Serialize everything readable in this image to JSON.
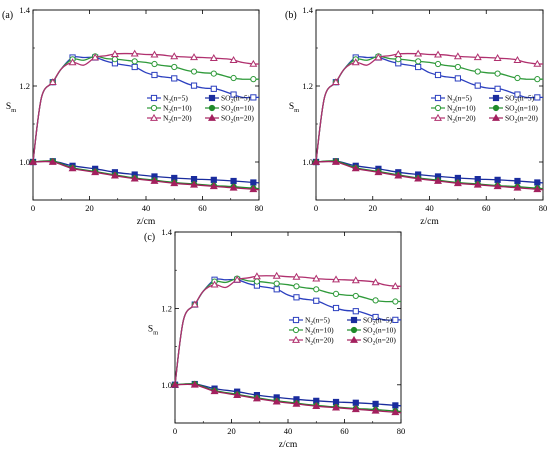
{
  "chart_data": [
    {
      "type": "line",
      "panel_label": "(a)",
      "xlabel": "z/cm",
      "ylabel": "S",
      "ylabel_sub": "m",
      "xlim": [
        0,
        80
      ],
      "ylim": [
        0.9,
        1.4
      ],
      "xticks": [
        "0",
        "20",
        "40",
        "60",
        "80"
      ],
      "yticks": [
        "1.0",
        "1.2",
        "1.4"
      ],
      "series": [
        {
          "name": "N2(n=5)",
          "color": "#2b3fbf",
          "marker": "open-square",
          "x": [
            0,
            3,
            7,
            10,
            14,
            18,
            22,
            26,
            30,
            36,
            40,
            45,
            50,
            55,
            60,
            65,
            70,
            74,
            78,
            80
          ],
          "y": [
            1.0,
            1.17,
            1.21,
            1.245,
            1.275,
            1.275,
            1.275,
            1.265,
            1.258,
            1.25,
            1.235,
            1.225,
            1.22,
            1.205,
            1.195,
            1.192,
            1.18,
            1.17,
            1.17,
            1.17
          ],
          "markers_x": [
            0,
            7,
            14,
            22,
            29,
            36,
            43,
            50,
            57,
            64,
            71,
            78
          ]
        },
        {
          "name": "N2(n=10)",
          "color": "#2f9a3a",
          "marker": "open-circle",
          "x": [
            0,
            3,
            7,
            10,
            14,
            18,
            22,
            26,
            30,
            36,
            40,
            45,
            50,
            55,
            60,
            65,
            70,
            74,
            78,
            80
          ],
          "y": [
            1.0,
            1.17,
            1.21,
            1.245,
            1.27,
            1.268,
            1.278,
            1.272,
            1.27,
            1.265,
            1.262,
            1.255,
            1.25,
            1.24,
            1.235,
            1.232,
            1.222,
            1.218,
            1.218,
            1.218
          ],
          "markers_x": [
            0,
            7,
            14,
            22,
            29,
            36,
            43,
            50,
            57,
            64,
            71,
            78
          ]
        },
        {
          "name": "N2(n=20)",
          "color": "#b0306e",
          "marker": "open-triangle",
          "x": [
            0,
            3,
            7,
            10,
            14,
            18,
            22,
            26,
            30,
            36,
            40,
            45,
            50,
            55,
            60,
            65,
            70,
            74,
            78,
            80
          ],
          "y": [
            1.0,
            1.17,
            1.21,
            1.245,
            1.262,
            1.255,
            1.275,
            1.28,
            1.285,
            1.285,
            1.283,
            1.282,
            1.278,
            1.276,
            1.275,
            1.273,
            1.27,
            1.262,
            1.258,
            1.258
          ],
          "markers_x": [
            0,
            7,
            14,
            22,
            29,
            36,
            43,
            50,
            57,
            64,
            71,
            78
          ]
        },
        {
          "name": "SO2(n=5)",
          "color": "#1a2c9e",
          "marker": "filled-square",
          "x": [
            0,
            7,
            14,
            22,
            29,
            36,
            43,
            50,
            57,
            64,
            71,
            80
          ],
          "y": [
            1.0,
            1.002,
            0.99,
            0.982,
            0.973,
            0.967,
            0.962,
            0.958,
            0.955,
            0.953,
            0.95,
            0.945
          ],
          "markers_x": [
            0,
            7,
            14,
            22,
            29,
            36,
            43,
            50,
            57,
            64,
            71,
            78
          ]
        },
        {
          "name": "SO2(n=10)",
          "color": "#1f8a2a",
          "marker": "filled-circle",
          "x": [
            0,
            7,
            14,
            22,
            29,
            36,
            43,
            50,
            57,
            64,
            71,
            80
          ],
          "y": [
            1.0,
            1.002,
            0.985,
            0.975,
            0.966,
            0.958,
            0.952,
            0.946,
            0.942,
            0.938,
            0.935,
            0.93
          ],
          "markers_x": [
            0,
            7,
            14,
            22,
            29,
            36,
            43,
            50,
            57,
            64,
            71,
            78
          ]
        },
        {
          "name": "SO2(n=20)",
          "color": "#a3205e",
          "marker": "filled-triangle",
          "x": [
            0,
            7,
            14,
            22,
            29,
            36,
            43,
            50,
            57,
            64,
            71,
            80
          ],
          "y": [
            1.0,
            1.0,
            0.983,
            0.973,
            0.964,
            0.956,
            0.95,
            0.944,
            0.94,
            0.936,
            0.932,
            0.927
          ],
          "markers_x": [
            0,
            7,
            14,
            22,
            29,
            36,
            43,
            50,
            57,
            64,
            71,
            78
          ]
        }
      ]
    },
    {
      "type": "line",
      "panel_label": "(b)",
      "xlabel": "z/cm",
      "ylabel": "S",
      "ylabel_sub": "m",
      "xlim": [
        0,
        80
      ],
      "ylim": [
        0.9,
        1.4
      ],
      "xticks": [
        "0",
        "20",
        "40",
        "60",
        "80"
      ],
      "yticks": [
        "1.0",
        "1.2",
        "1.4"
      ],
      "series": [
        {
          "name": "N2(n=5)",
          "color": "#2b3fbf",
          "marker": "open-square",
          "x": [
            0,
            3,
            7,
            10,
            14,
            18,
            22,
            26,
            30,
            36,
            40,
            45,
            50,
            55,
            60,
            65,
            70,
            74,
            78,
            80
          ],
          "y": [
            1.0,
            1.17,
            1.21,
            1.245,
            1.275,
            1.275,
            1.275,
            1.265,
            1.258,
            1.25,
            1.235,
            1.225,
            1.22,
            1.205,
            1.195,
            1.192,
            1.18,
            1.17,
            1.17,
            1.17
          ],
          "markers_x": [
            0,
            7,
            14,
            22,
            29,
            36,
            43,
            50,
            57,
            64,
            71,
            78
          ]
        },
        {
          "name": "N2(n=10)",
          "color": "#2f9a3a",
          "marker": "open-circle",
          "x": [
            0,
            3,
            7,
            10,
            14,
            18,
            22,
            26,
            30,
            36,
            40,
            45,
            50,
            55,
            60,
            65,
            70,
            74,
            78,
            80
          ],
          "y": [
            1.0,
            1.17,
            1.21,
            1.245,
            1.27,
            1.268,
            1.278,
            1.272,
            1.27,
            1.265,
            1.262,
            1.255,
            1.25,
            1.24,
            1.235,
            1.232,
            1.222,
            1.218,
            1.218,
            1.218
          ],
          "markers_x": [
            0,
            7,
            14,
            22,
            29,
            36,
            43,
            50,
            57,
            64,
            71,
            78
          ]
        },
        {
          "name": "N2(n=20)",
          "color": "#b0306e",
          "marker": "open-triangle",
          "x": [
            0,
            3,
            7,
            10,
            14,
            18,
            22,
            26,
            30,
            36,
            40,
            45,
            50,
            55,
            60,
            65,
            70,
            74,
            78,
            80
          ],
          "y": [
            1.0,
            1.17,
            1.21,
            1.245,
            1.262,
            1.255,
            1.275,
            1.28,
            1.285,
            1.285,
            1.283,
            1.282,
            1.278,
            1.276,
            1.275,
            1.273,
            1.27,
            1.262,
            1.258,
            1.258
          ],
          "markers_x": [
            0,
            7,
            14,
            22,
            29,
            36,
            43,
            50,
            57,
            64,
            71,
            78
          ]
        },
        {
          "name": "SO2(n=5)",
          "color": "#1a2c9e",
          "marker": "filled-square",
          "x": [
            0,
            7,
            14,
            22,
            29,
            36,
            43,
            50,
            57,
            64,
            71,
            80
          ],
          "y": [
            1.0,
            1.002,
            0.99,
            0.982,
            0.973,
            0.967,
            0.962,
            0.958,
            0.955,
            0.953,
            0.95,
            0.945
          ],
          "markers_x": [
            0,
            7,
            14,
            22,
            29,
            36,
            43,
            50,
            57,
            64,
            71,
            78
          ]
        },
        {
          "name": "SO2(n=10)",
          "color": "#1f8a2a",
          "marker": "filled-circle",
          "x": [
            0,
            7,
            14,
            22,
            29,
            36,
            43,
            50,
            57,
            64,
            71,
            80
          ],
          "y": [
            1.0,
            1.002,
            0.985,
            0.975,
            0.966,
            0.958,
            0.952,
            0.946,
            0.942,
            0.938,
            0.935,
            0.93
          ],
          "markers_x": [
            0,
            7,
            14,
            22,
            29,
            36,
            43,
            50,
            57,
            64,
            71,
            78
          ]
        },
        {
          "name": "SO2(n=20)",
          "color": "#a3205e",
          "marker": "filled-triangle",
          "x": [
            0,
            7,
            14,
            22,
            29,
            36,
            43,
            50,
            57,
            64,
            71,
            80
          ],
          "y": [
            1.0,
            1.0,
            0.983,
            0.973,
            0.964,
            0.956,
            0.95,
            0.944,
            0.94,
            0.936,
            0.932,
            0.927
          ],
          "markers_x": [
            0,
            7,
            14,
            22,
            29,
            36,
            43,
            50,
            57,
            64,
            71,
            78
          ]
        }
      ]
    },
    {
      "type": "line",
      "panel_label": "(c)",
      "xlabel": "z/cm",
      "ylabel": "S",
      "ylabel_sub": "m",
      "xlim": [
        0,
        80
      ],
      "ylim": [
        0.9,
        1.4
      ],
      "xticks": [
        "0",
        "20",
        "40",
        "60",
        "80"
      ],
      "yticks": [
        "1.0",
        "1.2",
        "1.4"
      ],
      "series": [
        {
          "name": "N2(n=5)",
          "color": "#2b3fbf",
          "marker": "open-square",
          "x": [
            0,
            3,
            7,
            10,
            14,
            18,
            22,
            26,
            30,
            36,
            40,
            45,
            50,
            55,
            60,
            65,
            70,
            74,
            78,
            80
          ],
          "y": [
            1.0,
            1.17,
            1.21,
            1.245,
            1.275,
            1.275,
            1.275,
            1.265,
            1.258,
            1.25,
            1.235,
            1.225,
            1.22,
            1.205,
            1.195,
            1.192,
            1.18,
            1.17,
            1.17,
            1.17
          ],
          "markers_x": [
            0,
            7,
            14,
            22,
            29,
            36,
            43,
            50,
            57,
            64,
            71,
            78
          ]
        },
        {
          "name": "N2(n=10)",
          "color": "#2f9a3a",
          "marker": "open-circle",
          "x": [
            0,
            3,
            7,
            10,
            14,
            18,
            22,
            26,
            30,
            36,
            40,
            45,
            50,
            55,
            60,
            65,
            70,
            74,
            78,
            80
          ],
          "y": [
            1.0,
            1.17,
            1.21,
            1.245,
            1.27,
            1.268,
            1.278,
            1.272,
            1.27,
            1.265,
            1.262,
            1.255,
            1.25,
            1.24,
            1.235,
            1.232,
            1.222,
            1.218,
            1.218,
            1.218
          ],
          "markers_x": [
            0,
            7,
            14,
            22,
            29,
            36,
            43,
            50,
            57,
            64,
            71,
            78
          ]
        },
        {
          "name": "N2(n=20)",
          "color": "#b0306e",
          "marker": "open-triangle",
          "x": [
            0,
            3,
            7,
            10,
            14,
            18,
            22,
            26,
            30,
            36,
            40,
            45,
            50,
            55,
            60,
            65,
            70,
            74,
            78,
            80
          ],
          "y": [
            1.0,
            1.17,
            1.21,
            1.245,
            1.262,
            1.255,
            1.275,
            1.28,
            1.285,
            1.285,
            1.283,
            1.282,
            1.278,
            1.276,
            1.275,
            1.273,
            1.27,
            1.262,
            1.258,
            1.258
          ],
          "markers_x": [
            0,
            7,
            14,
            22,
            29,
            36,
            43,
            50,
            57,
            64,
            71,
            78
          ]
        },
        {
          "name": "SO2(n=5)",
          "color": "#1a2c9e",
          "marker": "filled-square",
          "x": [
            0,
            7,
            14,
            22,
            29,
            36,
            43,
            50,
            57,
            64,
            71,
            80
          ],
          "y": [
            1.0,
            1.002,
            0.99,
            0.982,
            0.973,
            0.967,
            0.962,
            0.958,
            0.955,
            0.953,
            0.95,
            0.945
          ],
          "markers_x": [
            0,
            7,
            14,
            22,
            29,
            36,
            43,
            50,
            57,
            64,
            71,
            78
          ]
        },
        {
          "name": "SO2(n=10)",
          "color": "#1f8a2a",
          "marker": "filled-circle",
          "x": [
            0,
            7,
            14,
            22,
            29,
            36,
            43,
            50,
            57,
            64,
            71,
            80
          ],
          "y": [
            1.0,
            1.002,
            0.985,
            0.975,
            0.966,
            0.958,
            0.952,
            0.946,
            0.942,
            0.938,
            0.935,
            0.93
          ],
          "markers_x": [
            0,
            7,
            14,
            22,
            29,
            36,
            43,
            50,
            57,
            64,
            71,
            78
          ]
        },
        {
          "name": "SO2(n=20)",
          "color": "#a3205e",
          "marker": "filled-triangle",
          "x": [
            0,
            7,
            14,
            22,
            29,
            36,
            43,
            50,
            57,
            64,
            71,
            80
          ],
          "y": [
            1.0,
            1.0,
            0.983,
            0.973,
            0.964,
            0.956,
            0.95,
            0.944,
            0.94,
            0.936,
            0.932,
            0.927
          ],
          "markers_x": [
            0,
            7,
            14,
            22,
            29,
            36,
            43,
            50,
            57,
            64,
            71,
            78
          ]
        }
      ]
    }
  ]
}
